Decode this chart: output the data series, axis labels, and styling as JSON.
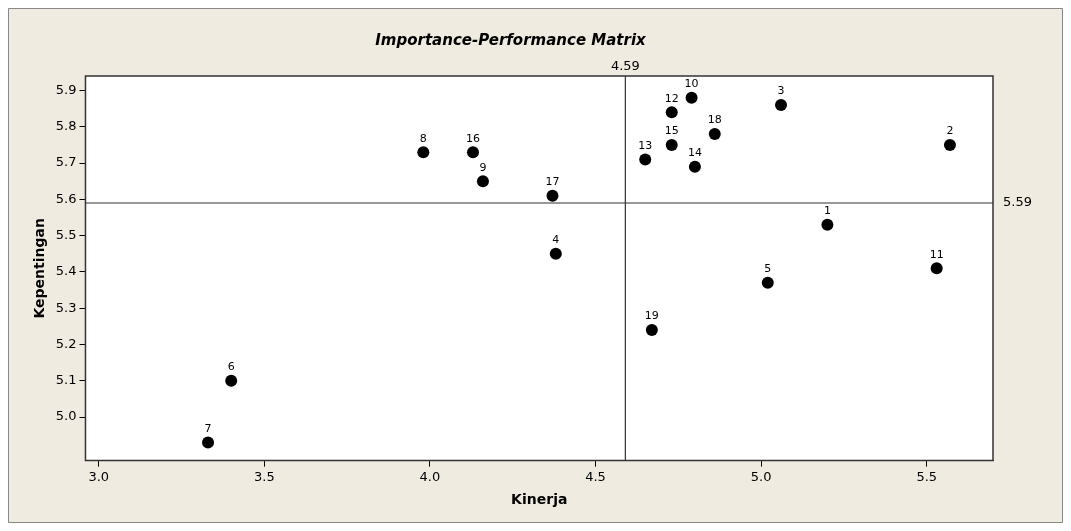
{
  "chart_data": {
    "type": "scatter",
    "title": "Importance-Performance Matrix",
    "xlabel": "Kinerja",
    "ylabel": "Kepentingan",
    "series": [
      {
        "color": "#000000",
        "x": [
          5.2,
          5.57,
          5.06,
          4.38,
          5.02,
          3.4,
          3.33,
          3.98,
          4.16,
          4.79,
          5.53,
          4.73,
          4.65,
          4.8,
          4.73,
          4.13,
          4.37,
          4.86,
          4.67
        ],
        "values": [
          5.53,
          5.75,
          5.86,
          5.45,
          5.37,
          5.1,
          4.93,
          5.73,
          5.65,
          5.88,
          5.41,
          5.84,
          5.71,
          5.69,
          5.75,
          5.73,
          5.61,
          5.78,
          5.24
        ]
      }
    ],
    "annotations": [
      {
        "text": "1",
        "x": 5.2,
        "y": 5.53
      },
      {
        "text": "2",
        "x": 5.57,
        "y": 5.75
      },
      {
        "text": "3",
        "x": 5.06,
        "y": 5.86
      },
      {
        "text": "4",
        "x": 4.38,
        "y": 5.45
      },
      {
        "text": "5",
        "x": 5.02,
        "y": 5.37
      },
      {
        "text": "6",
        "x": 3.4,
        "y": 5.1
      },
      {
        "text": "7",
        "x": 3.33,
        "y": 4.93
      },
      {
        "text": "8",
        "x": 3.98,
        "y": 5.73
      },
      {
        "text": "9",
        "x": 4.16,
        "y": 5.65
      },
      {
        "text": "10",
        "x": 4.79,
        "y": 5.88
      },
      {
        "text": "11",
        "x": 5.53,
        "y": 5.41
      },
      {
        "text": "12",
        "x": 4.73,
        "y": 5.84
      },
      {
        "text": "13",
        "x": 4.65,
        "y": 5.71
      },
      {
        "text": "14",
        "x": 4.8,
        "y": 5.69
      },
      {
        "text": "15",
        "x": 4.73,
        "y": 5.75
      },
      {
        "text": "16",
        "x": 4.13,
        "y": 5.73
      },
      {
        "text": "17",
        "x": 4.37,
        "y": 5.61
      },
      {
        "text": "18",
        "x": 4.86,
        "y": 5.78
      },
      {
        "text": "19",
        "x": 4.67,
        "y": 5.24
      }
    ],
    "ref_lines": [
      {
        "axis": "x",
        "value": 4.59,
        "label": "4.59"
      },
      {
        "axis": "y",
        "value": 5.59,
        "label": "5.59"
      }
    ],
    "xlim": [
      2.96,
      5.7
    ],
    "xticks": [
      {
        "value": 3,
        "label": "3.0"
      },
      {
        "value": 3.5,
        "label": "3.5"
      },
      {
        "value": 4,
        "label": "4.0"
      },
      {
        "value": 4.5,
        "label": "4.5"
      },
      {
        "value": 5,
        "label": "5.0"
      },
      {
        "value": 5.5,
        "label": "5.5"
      }
    ],
    "ylim": [
      4.88,
      5.94
    ],
    "yticks": [
      {
        "value": 5,
        "label": "5.0"
      },
      5.1,
      5.2,
      5.3,
      5.4,
      5.5,
      5.6,
      5.7,
      5.8,
      5.9
    ],
    "grid": false,
    "legend": false,
    "marker": "circle"
  }
}
